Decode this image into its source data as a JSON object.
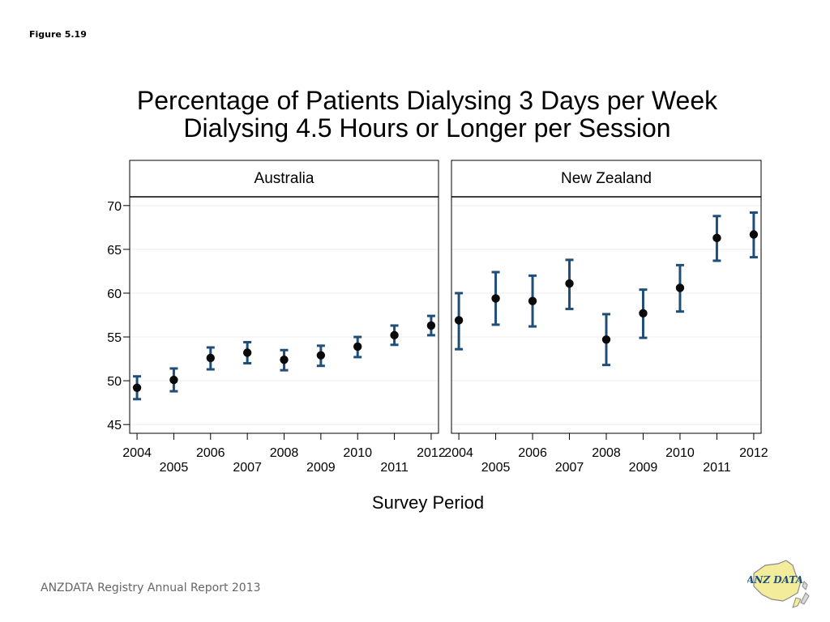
{
  "figure_label": "Figure 5.19",
  "title_line1": "Percentage of Patients Dialysing 3 Days per Week",
  "title_line2": "Dialysing 4.5 Hours or Longer per Session",
  "footer_text": "ANZDATA Registry Annual Report 2013",
  "logo_text": "ANZ DATA",
  "colors": {
    "errorbar": "#1f4e79",
    "marker": "#0a0a0a",
    "gridline": "#eeeeee"
  },
  "chart_data": {
    "type": "scatter",
    "xlabel": "Survey Period",
    "ylabel": "",
    "ylim": [
      44,
      71
    ],
    "yticks": [
      45,
      50,
      55,
      60,
      65,
      70
    ],
    "xlim": [
      2003.8,
      2012.2
    ],
    "xticks_top": [
      "2004",
      "2006",
      "2008",
      "2010",
      "2012"
    ],
    "xticks_bottom": [
      "2005",
      "2007",
      "2009",
      "2011"
    ],
    "grid": true,
    "panels": [
      {
        "name": "Australia",
        "x": [
          2004,
          2005,
          2006,
          2007,
          2008,
          2009,
          2010,
          2011,
          2012
        ],
        "y": [
          49.2,
          50.1,
          52.6,
          53.2,
          52.4,
          52.9,
          53.9,
          55.2,
          56.3
        ],
        "lower": [
          47.9,
          48.8,
          51.3,
          52.0,
          51.2,
          51.7,
          52.7,
          54.1,
          55.2
        ],
        "upper": [
          50.5,
          51.4,
          53.8,
          54.4,
          53.5,
          54.0,
          55.0,
          56.3,
          57.4
        ]
      },
      {
        "name": "New Zealand",
        "x": [
          2004,
          2005,
          2006,
          2007,
          2008,
          2009,
          2010,
          2011,
          2012
        ],
        "y": [
          56.9,
          59.4,
          59.1,
          61.1,
          54.7,
          57.7,
          60.6,
          66.3,
          66.7
        ],
        "lower": [
          53.6,
          56.4,
          56.2,
          58.2,
          51.8,
          54.9,
          57.9,
          63.7,
          64.1
        ],
        "upper": [
          60.0,
          62.4,
          62.0,
          63.8,
          57.6,
          60.4,
          63.2,
          68.8,
          69.2
        ]
      }
    ]
  }
}
